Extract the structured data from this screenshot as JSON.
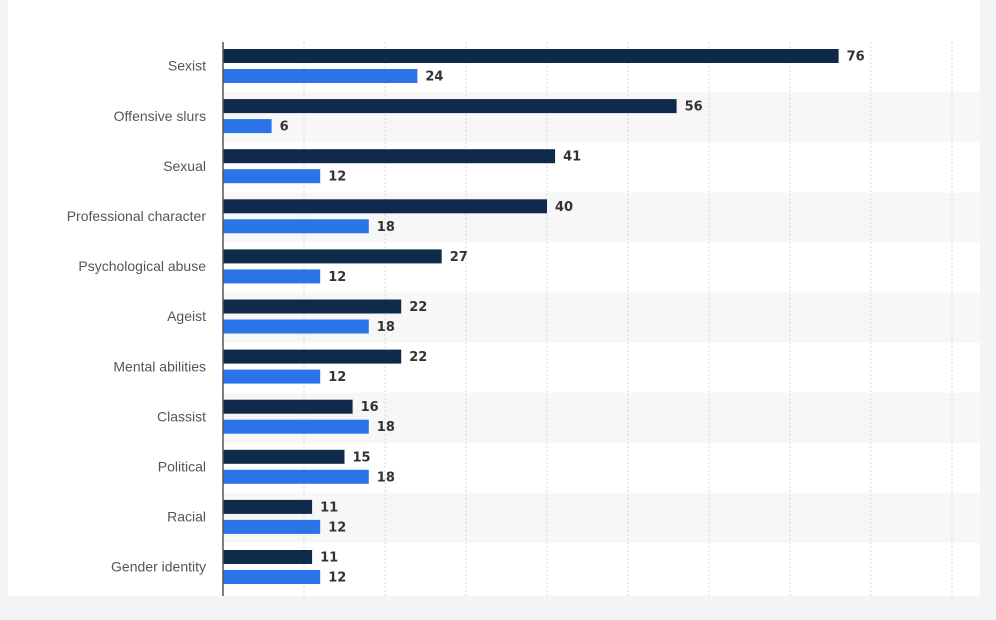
{
  "chart_data": {
    "type": "bar",
    "orientation": "horizontal",
    "categories": [
      "Sexist",
      "Offensive slurs",
      "Sexual",
      "Professional character",
      "Psychological abuse",
      "Ageist",
      "Mental abilities",
      "Classist",
      "Political",
      "Racial",
      "Gender identity"
    ],
    "series": [
      {
        "color": "#0f2a4a",
        "values": [
          76,
          56,
          41,
          40,
          27,
          22,
          22,
          16,
          15,
          11,
          11
        ]
      },
      {
        "color": "#2a74e8",
        "values": [
          24,
          6,
          12,
          18,
          12,
          18,
          12,
          18,
          18,
          12,
          12
        ]
      }
    ],
    "title": "",
    "xlabel": "",
    "ylabel": "",
    "xlim": [
      0,
      90
    ],
    "grid": true,
    "legend": "none",
    "data_labels": true
  },
  "colors": {
    "row_alt": "#f7f7f7",
    "grid": "#d4d8de",
    "axis": "#555555"
  }
}
